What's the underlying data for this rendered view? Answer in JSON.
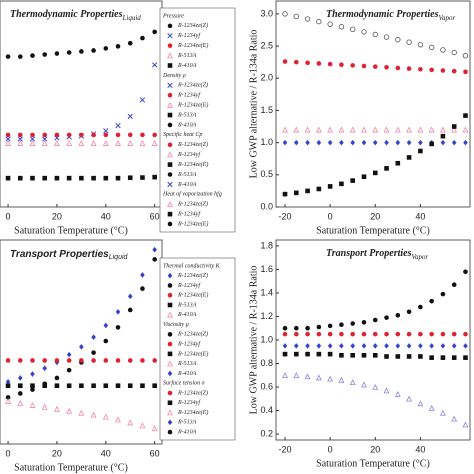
{
  "chart_data": [
    {
      "type": "scatter",
      "title": "Thermodynamic Properties",
      "title_subscript": "Liquid",
      "title_italic": true,
      "x_label": "Saturation Temperature (°C)",
      "x": [
        0,
        5,
        10,
        15,
        20,
        25,
        30,
        35,
        40,
        45,
        50,
        55,
        60
      ],
      "xlim": [
        -3.3,
        63
      ],
      "xticks": [
        0,
        20,
        40,
        60
      ],
      "ylim": [
        0,
        10
      ],
      "series": [
        {
          "color": "#111111",
          "marker": "circle",
          "values": [
            7.3,
            7.3,
            7.35,
            7.4,
            7.45,
            7.5,
            7.55,
            7.6,
            7.7,
            7.8,
            7.95,
            8.2,
            8.5
          ]
        },
        {
          "color": "#3344cc",
          "marker": "cross",
          "values": [
            3.3,
            3.3,
            3.3,
            3.3,
            3.35,
            3.4,
            3.45,
            3.55,
            3.7,
            3.95,
            4.4,
            5.2,
            6.9
          ]
        },
        {
          "color": "#dd2233",
          "marker": "circle",
          "values": [
            3.5,
            3.5,
            3.5,
            3.5,
            3.5,
            3.5,
            3.5,
            3.5,
            3.5,
            3.5,
            3.5,
            3.5,
            3.5
          ]
        },
        {
          "color": "#ee88aa",
          "marker": "triangle",
          "values": [
            3.1,
            3.1,
            3.1,
            3.1,
            3.1,
            3.1,
            3.1,
            3.1,
            3.1,
            3.1,
            3.1,
            3.1,
            3.1
          ]
        },
        {
          "color": "#111111",
          "marker": "square",
          "values": [
            1.4,
            1.4,
            1.4,
            1.4,
            1.4,
            1.4,
            1.4,
            1.4,
            1.4,
            1.4,
            1.42,
            1.43,
            1.45
          ]
        }
      ],
      "legend_groups": [
        {
          "title": "Pressure",
          "items": [
            "R-1234ze(Z)",
            "R-1234yf",
            "R-1234ze(E)",
            "R-513A",
            "R-410A"
          ]
        },
        {
          "title": "Density ρ",
          "items": [
            "R-1234ze(Z)",
            "R-1234yf",
            "R-1234ze(E)",
            "R-513A",
            "R-410A"
          ]
        },
        {
          "title": "Specific heat Cp",
          "items": [
            "R-1234ze(Z)",
            "R-1234yf",
            "R-1234ze(E)",
            "R-513A",
            "R-410A"
          ]
        },
        {
          "title": "Heat of vaporization hfg",
          "items": [
            "R-1234ze(Z)",
            "R-1234yf",
            "R-1234ze(E)"
          ]
        }
      ]
    },
    {
      "type": "scatter",
      "title": "Thermodynamic Properties",
      "title_subscript": "Vapor",
      "title_italic": true,
      "x_label": "Saturation Temperature (°C)",
      "y_label": "Low GWP alternative / R-134a Ratio",
      "x": [
        -20,
        -15,
        -10,
        -5,
        0,
        5,
        10,
        15,
        20,
        25,
        30,
        35,
        40,
        45,
        50,
        55,
        60
      ],
      "xlim": [
        -24,
        62
      ],
      "xticks": [
        -20,
        0,
        20,
        40
      ],
      "ylim": [
        0,
        3.2
      ],
      "yticks": [
        {
          "value": 0,
          "label": "0.0"
        },
        {
          "value": 0.5,
          "label": "0.5"
        },
        {
          "value": 1,
          "label": "1.0"
        },
        {
          "value": 1.5,
          "label": "1.5"
        },
        {
          "value": 2,
          "label": "2.0"
        },
        {
          "value": 2.5,
          "label": "2.5"
        },
        {
          "value": 3,
          "label": "3.0"
        }
      ],
      "series": [
        {
          "color": "#555555",
          "marker": "ring",
          "values": [
            3.0,
            2.96,
            2.92,
            2.88,
            2.84,
            2.8,
            2.76,
            2.72,
            2.68,
            2.64,
            2.6,
            2.56,
            2.52,
            2.48,
            2.44,
            2.4,
            2.35
          ]
        },
        {
          "color": "#dd2233",
          "marker": "circle",
          "values": [
            2.26,
            2.25,
            2.24,
            2.23,
            2.22,
            2.21,
            2.2,
            2.19,
            2.18,
            2.17,
            2.16,
            2.15,
            2.14,
            2.13,
            2.12,
            2.11,
            2.1
          ]
        },
        {
          "color": "#ee88aa",
          "marker": "triangle",
          "values": [
            1.2,
            1.2,
            1.2,
            1.2,
            1.2,
            1.2,
            1.2,
            1.2,
            1.2,
            1.2,
            1.2,
            1.2,
            1.2,
            1.2,
            1.2,
            1.2,
            1.2
          ]
        },
        {
          "color": "#3344cc",
          "marker": "diamond",
          "values": [
            1.0,
            1.0,
            1.0,
            1.0,
            1.0,
            1.0,
            1.0,
            1.0,
            1.0,
            1.0,
            1.0,
            1.0,
            1.0,
            1.0,
            1.0,
            1.0,
            1.0
          ]
        },
        {
          "color": "#111111",
          "marker": "square",
          "values": [
            0.2,
            0.22,
            0.25,
            0.28,
            0.32,
            0.36,
            0.41,
            0.47,
            0.53,
            0.6,
            0.68,
            0.77,
            0.87,
            0.98,
            1.1,
            1.25,
            1.42
          ]
        }
      ]
    },
    {
      "type": "scatter",
      "title": "Transport Properties",
      "title_subscript": "Liquid",
      "title_italic": false,
      "x_label": "Saturation Temperature (°C)",
      "x": [
        0,
        5,
        10,
        15,
        20,
        25,
        30,
        35,
        40,
        45,
        50,
        55,
        60
      ],
      "xlim": [
        -3.3,
        63
      ],
      "xticks": [
        0,
        20,
        40,
        60
      ],
      "ylim": [
        0,
        10.5
      ],
      "series": [
        {
          "color": "#3344cc",
          "marker": "diamond",
          "values": [
            3.2,
            3.4,
            3.6,
            3.9,
            4.2,
            4.6,
            5.0,
            5.5,
            6.1,
            6.8,
            7.6,
            8.7,
            10.0
          ]
        },
        {
          "color": "#111111",
          "marker": "circle",
          "values": [
            2.4,
            2.6,
            2.8,
            3.1,
            3.4,
            3.8,
            4.2,
            4.7,
            5.3,
            6.0,
            6.9,
            8.0,
            9.5
          ]
        },
        {
          "color": "#dd2233",
          "marker": "circle",
          "values": [
            4.3,
            4.3,
            4.3,
            4.3,
            4.3,
            4.3,
            4.3,
            4.3,
            4.3,
            4.3,
            4.3,
            4.3,
            4.3
          ]
        },
        {
          "color": "#111111",
          "marker": "square",
          "values": [
            3.0,
            3.0,
            3.0,
            3.0,
            3.0,
            3.0,
            3.0,
            3.0,
            3.0,
            3.0,
            3.0,
            3.0,
            3.0
          ]
        },
        {
          "color": "#ee88aa",
          "marker": "triangle",
          "values": [
            2.2,
            2.1,
            2.0,
            1.9,
            1.8,
            1.7,
            1.6,
            1.5,
            1.4,
            1.25,
            1.1,
            0.95,
            0.8
          ]
        }
      ],
      "legend_groups": [
        {
          "title": "Thermal conductivity K",
          "items": [
            "R-1234ze(Z)",
            "R-1234yf",
            "R-1234ze(E)",
            "R-513A",
            "R-410A"
          ]
        },
        {
          "title": "Viscosity μ",
          "items": [
            "R-1234ze(Z)",
            "R-1234yf",
            "R-1234ze(E)",
            "R-513A",
            "R-410A"
          ]
        },
        {
          "title": "Surface tension σ",
          "items": [
            "R-1234ze(Z)",
            "R-1234yf",
            "R-1234ze(E)",
            "R-513A",
            "R-410A"
          ]
        }
      ]
    },
    {
      "type": "scatter",
      "title": "Transport Properties",
      "title_subscript": "Vapor",
      "title_italic": true,
      "x_label": "Saturation Temperature (°C)",
      "y_label": "Low GWP alternative / R-134a Ratio",
      "x": [
        -20,
        -15,
        -10,
        -5,
        0,
        5,
        10,
        15,
        20,
        25,
        30,
        35,
        40,
        45,
        50,
        55,
        60
      ],
      "xlim": [
        -24,
        62
      ],
      "xticks": [
        -20,
        0,
        20,
        40
      ],
      "ylim": [
        0.15,
        1.85
      ],
      "yticks": [
        0.2,
        0.4,
        0.6,
        0.8,
        {
          "value": 1,
          "label": "1.0"
        },
        1.2,
        1.4,
        1.6,
        1.8
      ],
      "series": [
        {
          "color": "#111111",
          "marker": "circle",
          "values": [
            1.1,
            1.1,
            1.1,
            1.11,
            1.12,
            1.13,
            1.14,
            1.15,
            1.17,
            1.19,
            1.21,
            1.24,
            1.28,
            1.33,
            1.39,
            1.47,
            1.58
          ]
        },
        {
          "color": "#dd2233",
          "marker": "circle",
          "values": [
            1.05,
            1.05,
            1.05,
            1.05,
            1.05,
            1.05,
            1.05,
            1.05,
            1.05,
            1.05,
            1.05,
            1.05,
            1.05,
            1.05,
            1.05,
            1.05,
            1.05
          ]
        },
        {
          "color": "#3344cc",
          "marker": "diamond",
          "values": [
            0.95,
            0.95,
            0.95,
            0.95,
            0.95,
            0.95,
            0.95,
            0.95,
            0.95,
            0.95,
            0.95,
            0.95,
            0.95,
            0.95,
            0.95,
            0.95,
            0.95
          ]
        },
        {
          "color": "#111111",
          "marker": "square",
          "values": [
            0.88,
            0.88,
            0.88,
            0.88,
            0.88,
            0.87,
            0.87,
            0.87,
            0.87,
            0.86,
            0.86,
            0.86,
            0.86,
            0.85,
            0.85,
            0.85,
            0.85
          ]
        },
        {
          "color": "#8888dd",
          "marker": "triangle",
          "values": [
            0.7,
            0.7,
            0.69,
            0.68,
            0.67,
            0.66,
            0.64,
            0.62,
            0.6,
            0.57,
            0.54,
            0.5,
            0.46,
            0.42,
            0.38,
            0.33,
            0.28
          ]
        }
      ]
    }
  ]
}
